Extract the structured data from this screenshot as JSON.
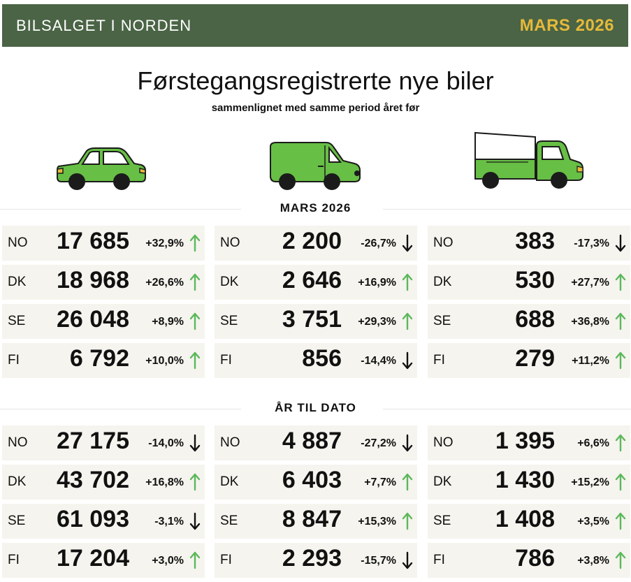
{
  "header": {
    "brand": "BILSALGET I NORDEN",
    "period": "MARS 2026"
  },
  "title": "Førstegangsregistrerte nye biler",
  "subtitle": "sammenlignet med samme period året før",
  "colors": {
    "header_bg": "#4a6445",
    "period": "#e6b93a",
    "vehicle_green": "#67bf45",
    "up": "#5cb85c",
    "down": "#111111",
    "cell_bg": "#f5f4ee"
  },
  "vehicles": [
    "car-icon",
    "van-icon",
    "truck-icon"
  ],
  "sections": [
    {
      "title": "MARS 2026",
      "columns": [
        [
          {
            "cc": "NO",
            "value": "17 685",
            "change": "+32,9%",
            "dir": "up"
          },
          {
            "cc": "DK",
            "value": "18 968",
            "change": "+26,6%",
            "dir": "up"
          },
          {
            "cc": "SE",
            "value": "26 048",
            "change": "+8,9%",
            "dir": "up"
          },
          {
            "cc": "FI",
            "value": "6 792",
            "change": "+10,0%",
            "dir": "up"
          }
        ],
        [
          {
            "cc": "NO",
            "value": "2 200",
            "change": "-26,7%",
            "dir": "down"
          },
          {
            "cc": "DK",
            "value": "2 646",
            "change": "+16,9%",
            "dir": "up"
          },
          {
            "cc": "SE",
            "value": "3 751",
            "change": "+29,3%",
            "dir": "up"
          },
          {
            "cc": "FI",
            "value": "856",
            "change": "-14,4%",
            "dir": "down"
          }
        ],
        [
          {
            "cc": "NO",
            "value": "383",
            "change": "-17,3%",
            "dir": "down"
          },
          {
            "cc": "DK",
            "value": "530",
            "change": "+27,7%",
            "dir": "up"
          },
          {
            "cc": "SE",
            "value": "688",
            "change": "+36,8%",
            "dir": "up"
          },
          {
            "cc": "FI",
            "value": "279",
            "change": "+11,2%",
            "dir": "up"
          }
        ]
      ]
    },
    {
      "title": "ÅR TIL DATO",
      "columns": [
        [
          {
            "cc": "NO",
            "value": "27 175",
            "change": "-14,0%",
            "dir": "down"
          },
          {
            "cc": "DK",
            "value": "43 702",
            "change": "+16,8%",
            "dir": "up"
          },
          {
            "cc": "SE",
            "value": "61 093",
            "change": "-3,1%",
            "dir": "down"
          },
          {
            "cc": "FI",
            "value": "17 204",
            "change": "+3,0%",
            "dir": "up"
          }
        ],
        [
          {
            "cc": "NO",
            "value": "4 887",
            "change": "-27,2%",
            "dir": "down"
          },
          {
            "cc": "DK",
            "value": "6 403",
            "change": "+7,7%",
            "dir": "up"
          },
          {
            "cc": "SE",
            "value": "8 847",
            "change": "+15,3%",
            "dir": "up"
          },
          {
            "cc": "FI",
            "value": "2 293",
            "change": "-15,7%",
            "dir": "down"
          }
        ],
        [
          {
            "cc": "NO",
            "value": "1 395",
            "change": "+6,6%",
            "dir": "up"
          },
          {
            "cc": "DK",
            "value": "1 430",
            "change": "+15,2%",
            "dir": "up"
          },
          {
            "cc": "SE",
            "value": "1 408",
            "change": "+3,5%",
            "dir": "up"
          },
          {
            "cc": "FI",
            "value": "786",
            "change": "+3,8%",
            "dir": "up"
          }
        ]
      ]
    }
  ]
}
